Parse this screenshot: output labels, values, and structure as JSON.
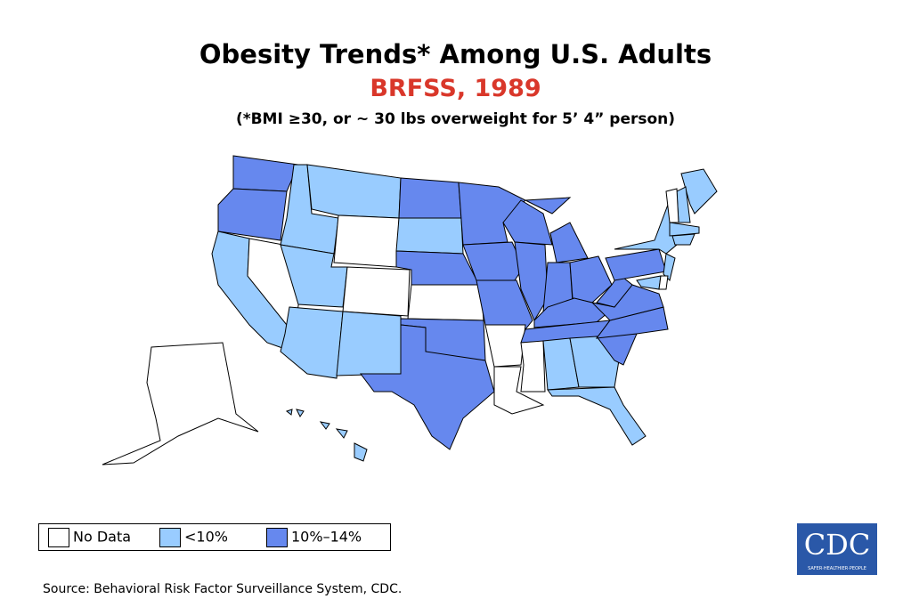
{
  "header": {
    "title": "Obesity Trends* Among U.S. Adults",
    "subtitle": "BRFSS, 1989",
    "note": "(*BMI ≥30, or ~ 30 lbs overweight for 5’ 4” person)"
  },
  "legend": {
    "items": [
      {
        "label": "No Data",
        "color": "#ffffff"
      },
      {
        "label": "<10%",
        "color": "#99ccff"
      },
      {
        "label": "10%–14%",
        "color": "#6688ee"
      }
    ]
  },
  "logo": {
    "text": "CDC",
    "tagline": "SAFER·HEALTHIER·PEOPLE"
  },
  "footer": {
    "source": "Source: Behavioral Risk Factor Surveillance System, CDC."
  }
}
